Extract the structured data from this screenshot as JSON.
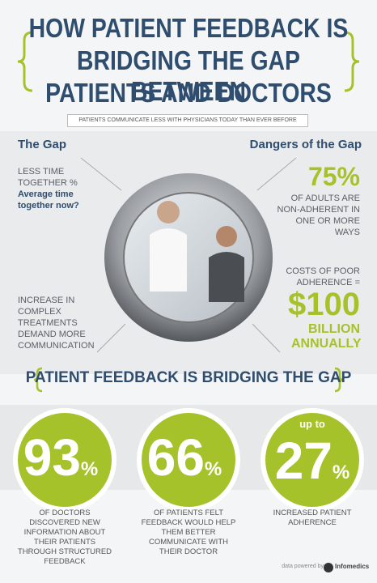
{
  "header": {
    "title_lines": [
      "HOW PATIENT FEEDBACK IS",
      "BRIDGING THE GAP BETWEEN",
      "PATIENTS AND DOCTORS"
    ],
    "banner": "PATIENTS COMMUNICATE LESS WITH PHYSICIANS TODAY THAN EVER BEFORE"
  },
  "gap": {
    "heading": "The Gap",
    "item1": "LESS TIME TOGETHER %",
    "item1_sub": "Average time together now?",
    "item2": "INCREASE IN COMPLEX TREATMENTS DEMAND MORE COMMUNICATION"
  },
  "dangers": {
    "heading": "Dangers of the Gap",
    "stat1": "75%",
    "stat1_text": "OF ADULTS ARE NON-ADHERENT IN ONE OR MORE WAYS",
    "stat2_intro": "COSTS OF POOR ADHERENCE =",
    "stat2": "$100",
    "stat2_text": "BILLION ANNUALLY"
  },
  "feedback": {
    "heading": "PATIENT FEEDBACK IS BRIDGING THE GAP",
    "stats": [
      {
        "number": "93",
        "unit": "%",
        "text": "OF DOCTORS DISCOVERED NEW INFORMATION ABOUT THEIR PATIENTS THROUGH STRUCTURED FEEDBACK"
      },
      {
        "number": "66",
        "unit": "%",
        "text": "OF PATIENTS FELT FEEDBACK WOULD HELP THEM BETTER COMMUNICATE WITH THEIR DOCTOR"
      },
      {
        "prefix": "up to",
        "number": "27",
        "unit": "%",
        "text": "INCREASED PATIENT ADHERENCE"
      }
    ]
  },
  "footer": {
    "credit": "data powered by",
    "brand": "Infomedics"
  }
}
